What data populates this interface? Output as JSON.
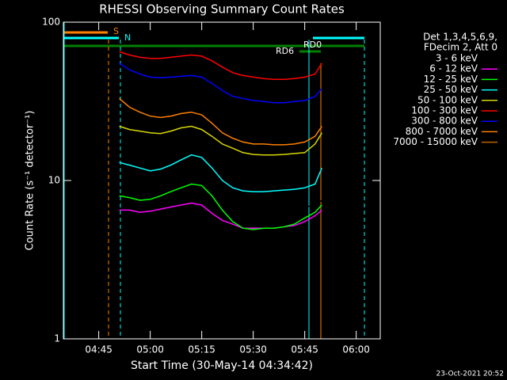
{
  "chart_data": {
    "type": "line",
    "title": "RHESSI Observing Summary Count Rates",
    "xlabel": "Start Time (30-May-14 04:34:42)",
    "ylabel": "Count Rate (s⁻¹ detector⁻¹)",
    "timestamp": "23-Oct-2021 20:52",
    "legend_header": [
      "Det 1,3,4,5,6,9,",
      "FDecim 2, Att 0"
    ],
    "annotations": [
      "S",
      "N",
      "RD0",
      "RD6"
    ],
    "log_y": true,
    "xlim": [
      "04:34:42",
      "06:07"
    ],
    "xticks": [
      "04:45",
      "05:00",
      "05:15",
      "05:30",
      "05:45",
      "06:00"
    ],
    "ylim": [
      1,
      100
    ],
    "yticks": [
      1,
      10,
      100
    ],
    "x": [
      "04:51",
      "04:54",
      "04:57",
      "05:00",
      "05:03",
      "05:06",
      "05:09",
      "05:12",
      "05:15",
      "05:18",
      "05:21",
      "05:24",
      "05:27",
      "05:30",
      "05:33",
      "05:36",
      "05:39",
      "05:42",
      "05:45",
      "05:48",
      "05:50"
    ],
    "series": [
      {
        "name": "3 - 6 keV",
        "color": "#000000",
        "values": [
          8,
          8.5,
          8,
          8.2,
          8.5,
          8.8,
          9,
          9.2,
          9,
          8,
          7,
          6.8,
          6.5,
          6.5,
          6.4,
          6.5,
          6.5,
          6.6,
          6.8,
          7,
          7.5
        ]
      },
      {
        "name": "6 - 12 keV",
        "color": "#ff00ff",
        "values": [
          6.5,
          6.5,
          6.3,
          6.4,
          6.6,
          6.8,
          7,
          7.2,
          7,
          6.2,
          5.6,
          5.3,
          5,
          5,
          5,
          5,
          5.1,
          5.2,
          5.5,
          6,
          6.5
        ]
      },
      {
        "name": "12 - 25 keV",
        "color": "#00ff00",
        "values": [
          8,
          7.8,
          7.5,
          7.6,
          8,
          8.5,
          9,
          9.5,
          9.3,
          8,
          6.5,
          5.5,
          5,
          4.9,
          5,
          5,
          5.1,
          5.3,
          5.8,
          6.3,
          7
        ]
      },
      {
        "name": "25 - 50 keV",
        "color": "#00ffff",
        "values": [
          13,
          12.5,
          12,
          11.5,
          11.8,
          12.5,
          13.5,
          14.5,
          14,
          12,
          10,
          9,
          8.6,
          8.5,
          8.5,
          8.6,
          8.7,
          8.8,
          9,
          9.5,
          12
        ]
      },
      {
        "name": "50 - 100 keV",
        "color": "#d8d800",
        "values": [
          22,
          21,
          20.5,
          20,
          19.8,
          20.5,
          21.5,
          22,
          21,
          19,
          17,
          16,
          15,
          14.6,
          14.5,
          14.5,
          14.6,
          14.8,
          15,
          17,
          20
        ]
      },
      {
        "name": "100 - 300 keV",
        "color": "#ff0000",
        "values": [
          65,
          62,
          60,
          59,
          59,
          60,
          61,
          62,
          61,
          57,
          52,
          48,
          46,
          45,
          44,
          43.5,
          43.5,
          44,
          45,
          47,
          55
        ]
      },
      {
        "name": "300 - 800 keV",
        "color": "#0000ff",
        "values": [
          55,
          50,
          47,
          45,
          44.5,
          45,
          45.5,
          46,
          45,
          41,
          37,
          34,
          33,
          32,
          31.5,
          31,
          31,
          31.5,
          32,
          34,
          38
        ]
      },
      {
        "name": "800 - 7000 keV",
        "color": "#ff8000",
        "values": [
          33,
          29,
          27,
          25.5,
          25,
          25.5,
          26.5,
          27,
          26,
          23,
          20,
          18.5,
          17.5,
          17,
          17,
          16.8,
          16.8,
          17,
          17.5,
          19,
          22
        ]
      },
      {
        "name": "7000 - 15000 keV",
        "color": "#c06000",
        "values": [
          null,
          null,
          null,
          null,
          null,
          null,
          null,
          null,
          null,
          null,
          null,
          null,
          null,
          null,
          null,
          null,
          null,
          null,
          null,
          null,
          null
        ]
      }
    ]
  }
}
